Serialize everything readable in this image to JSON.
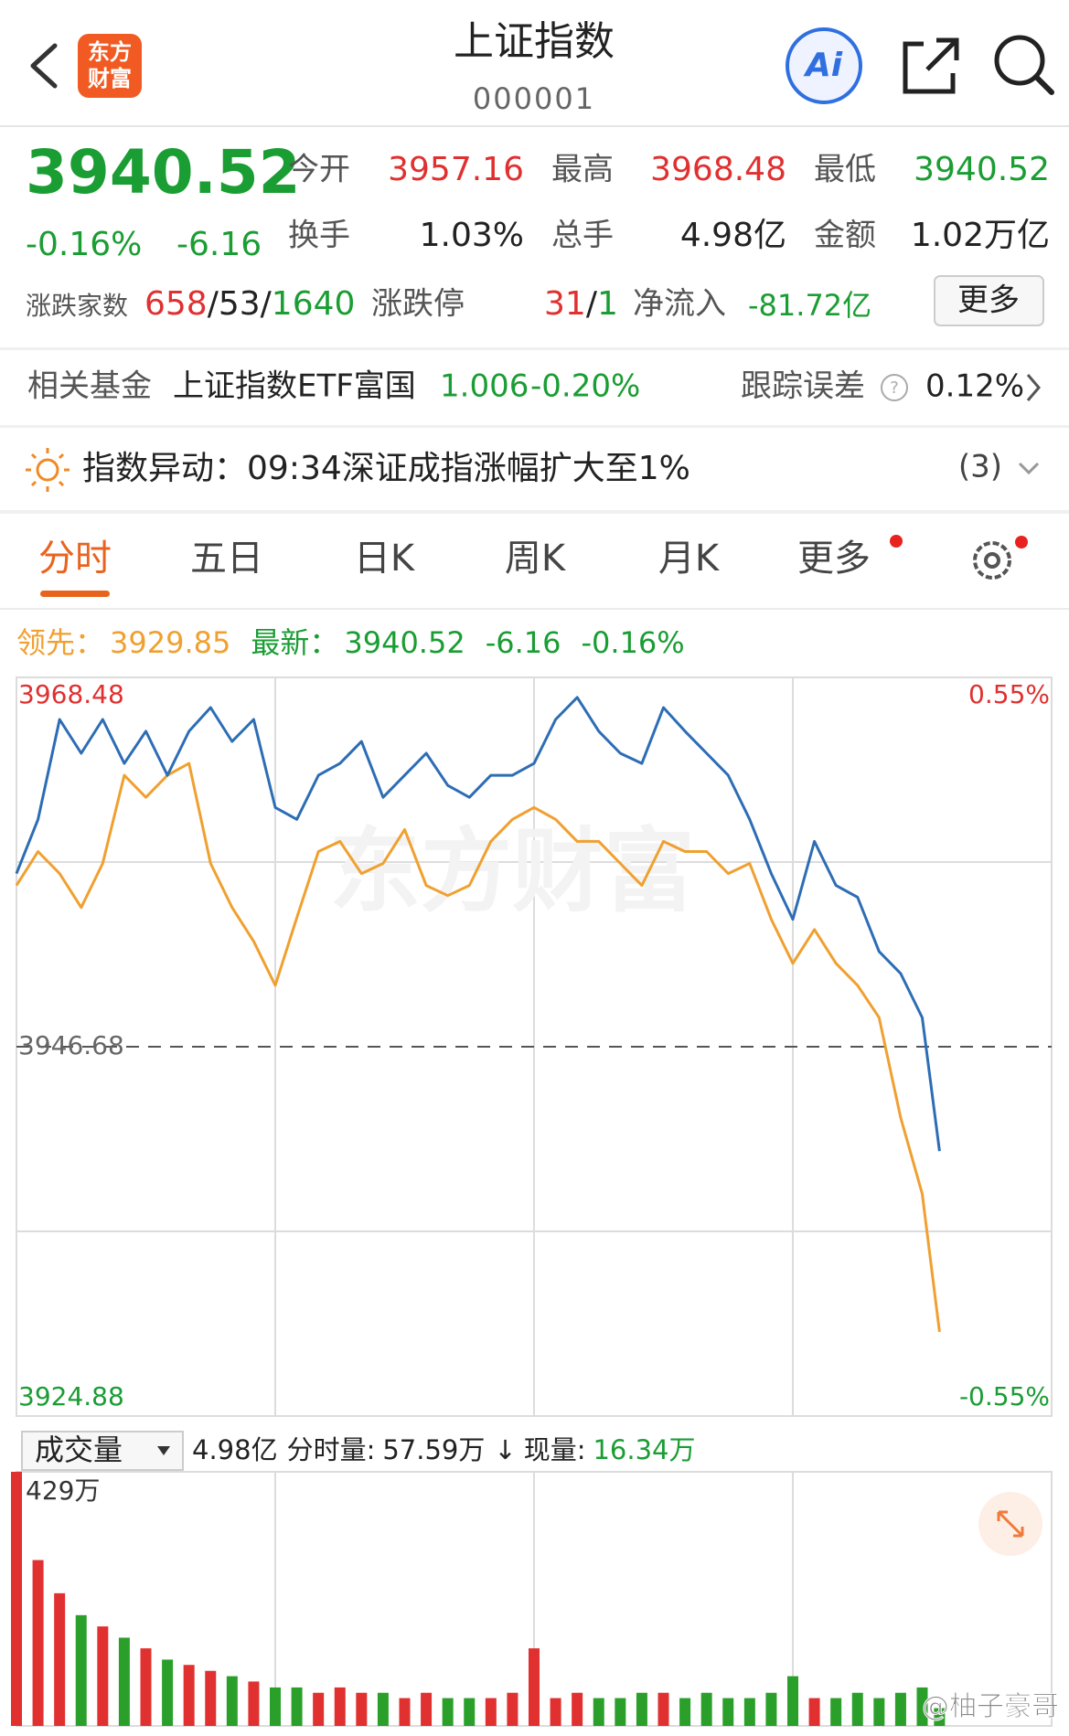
{
  "header": {
    "logo": [
      "东方",
      "财富"
    ],
    "title": "上证指数",
    "code": "000001",
    "ai": "Ai"
  },
  "quote": {
    "price": "3940.52",
    "change_pct": "-0.16%",
    "change": "-6.16",
    "fields": [
      {
        "label": "今开",
        "value": "3957.16"
      },
      {
        "label": "最高",
        "value": "3968.48"
      },
      {
        "label": "最低",
        "value": "3940.52"
      },
      {
        "label": "换手",
        "value": "1.03%"
      },
      {
        "label": "总手",
        "value": "4.98亿"
      },
      {
        "label": "金额",
        "value": "1.02万亿"
      }
    ],
    "breadth": {
      "label": "涨跌家数",
      "up": "658",
      "flat": "/53/",
      "down": "1640"
    },
    "limit": {
      "label": "涨跌停",
      "up": "31",
      "sep": "/",
      "down": "1"
    },
    "net_inflow": {
      "label": "净流入",
      "value": "-81.72亿"
    },
    "more": "更多"
  },
  "fund": {
    "label": "相关基金",
    "name": "上证指数ETF富国",
    "price": "1.006",
    "change": "-0.20%",
    "tracking_label": "跟踪误差",
    "tracking": "0.12%"
  },
  "alert": {
    "label": "指数异动：",
    "text": "09:34深证成指涨幅扩大至1%",
    "count": "(3)"
  },
  "tabs": [
    {
      "label": "分时",
      "active": true
    },
    {
      "label": "五日",
      "active": false
    },
    {
      "label": "日K",
      "active": false
    },
    {
      "label": "周K",
      "active": false
    },
    {
      "label": "月K",
      "active": false
    },
    {
      "label": "更多",
      "active": false
    }
  ],
  "legend": {
    "lead_value": "3929.85",
    "latest_value": "3940.52",
    "latest_change": "-6.16",
    "latest_pct": "-0.16%"
  },
  "chart_data": [
    {
      "type": "line",
      "x": [
        0,
        5,
        10,
        15,
        20,
        25,
        30,
        35,
        40,
        45,
        50,
        55,
        60,
        65,
        70,
        75,
        80,
        85,
        90,
        95,
        100,
        105,
        110,
        115,
        120,
        125,
        130,
        135,
        140,
        145,
        150,
        155,
        160,
        165,
        170,
        175,
        180,
        185,
        190,
        195,
        200,
        205,
        210,
        214
      ],
      "series": [
        {
          "name": "最新：",
          "color": "#2d6db5",
          "values": [
            3956.9,
            3960.1,
            3966.0,
            3964.0,
            3966.0,
            3963.4,
            3965.3,
            3962.7,
            3965.3,
            3966.7,
            3964.7,
            3966.0,
            3960.8,
            3960.1,
            3962.7,
            3963.4,
            3964.7,
            3961.4,
            3962.7,
            3964.0,
            3962.1,
            3961.4,
            3962.7,
            3962.7,
            3963.4,
            3966.0,
            3967.3,
            3965.3,
            3964.0,
            3963.4,
            3966.7,
            3965.3,
            3964.0,
            3962.7,
            3960.1,
            3956.9,
            3954.2,
            3958.8,
            3956.2,
            3955.5,
            3952.3,
            3951.0,
            3948.4,
            3940.52
          ]
        },
        {
          "name": "领先：",
          "color": "#f0a030",
          "values": [
            3956.2,
            3958.2,
            3956.9,
            3954.9,
            3957.5,
            3962.7,
            3961.4,
            3962.7,
            3963.4,
            3957.5,
            3954.9,
            3952.9,
            3950.3,
            3954.3,
            3958.2,
            3958.8,
            3956.9,
            3957.5,
            3959.5,
            3956.2,
            3955.6,
            3956.2,
            3958.8,
            3960.1,
            3960.8,
            3960.1,
            3958.8,
            3958.8,
            3957.5,
            3956.2,
            3958.8,
            3958.2,
            3958.2,
            3956.9,
            3957.5,
            3954.2,
            3951.6,
            3953.6,
            3951.6,
            3950.3,
            3948.4,
            3942.5,
            3938.0,
            3929.85
          ]
        }
      ],
      "xlim": [
        0,
        240
      ],
      "ylim": [
        3924.88,
        3968.48
      ],
      "yticks": [
        3968.48,
        3946.68,
        3924.88
      ],
      "y2lim": [
        -0.55,
        0.55
      ],
      "y2ticks": [
        {
          "value": 0.55,
          "label": "0.55%"
        },
        {
          "value": -0.55,
          "label": "-0.55%"
        }
      ],
      "grid": true
    },
    {
      "type": "bar",
      "x": [
        0,
        5,
        10,
        15,
        20,
        25,
        30,
        35,
        40,
        45,
        50,
        55,
        60,
        65,
        70,
        75,
        80,
        85,
        90,
        95,
        100,
        105,
        110,
        115,
        120,
        125,
        130,
        135,
        140,
        145,
        150,
        155,
        160,
        165,
        170,
        175,
        180,
        185,
        190,
        195,
        200,
        205,
        210,
        214
      ],
      "values": [
        429,
        280,
        224,
        187,
        168,
        149,
        131,
        112,
        103,
        93,
        84,
        75,
        65,
        65,
        56,
        65,
        56,
        56,
        47,
        56,
        47,
        47,
        47,
        56,
        131,
        47,
        56,
        47,
        47,
        56,
        56,
        47,
        56,
        47,
        47,
        56,
        84,
        47,
        47,
        56,
        47,
        56,
        65,
        30
      ],
      "xlim": [
        0,
        240
      ],
      "ylim": [
        0,
        429
      ],
      "yticks": [
        {
          "value": 429,
          "label": "429万"
        }
      ],
      "up_color": "#e03030",
      "down_color": "#2aa02a"
    }
  ],
  "volume_bar": {
    "selector": "成交量",
    "total": "4.98亿",
    "minute_label": "分时量:",
    "minute_value": "57.59万",
    "arrow": "↓",
    "current_label": "现量:",
    "current_value": "16.34万"
  },
  "watermarks": [
    "东方财富",
    "@柚子豪哥"
  ]
}
